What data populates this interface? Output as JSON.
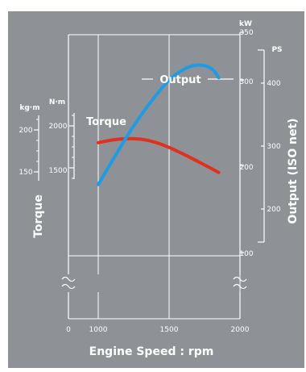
{
  "colors": {
    "background": "#8e9296",
    "torque": "#e0301e",
    "output": "#1f9be4",
    "axis": "#ffffff"
  },
  "chart_data": {
    "type": "line",
    "title": "",
    "xlabel": "Engine Speed : rpm",
    "xlim": [
      1000,
      2000
    ],
    "x_ticks": [
      "0",
      "1000",
      "1500",
      "2000"
    ],
    "grid": true,
    "left_axis": {
      "title": "Torque",
      "units": [
        "kg·m",
        "N·m"
      ],
      "nm_ticks": [
        "2000",
        "1500"
      ],
      "kgm_ticks": [
        "200",
        "150"
      ]
    },
    "right_axis": {
      "title": "Output (ISO net)",
      "units": [
        "kW",
        "PS"
      ],
      "kw_ticks": [
        "350",
        "300",
        "200",
        "100"
      ],
      "ps_ticks": [
        "400",
        "300",
        "200"
      ]
    },
    "series": [
      {
        "name": "Torque",
        "unit": "N·m",
        "color": "#e0301e",
        "points": [
          [
            1000,
            1800
          ],
          [
            1100,
            1835
          ],
          [
            1200,
            1850
          ],
          [
            1300,
            1845
          ],
          [
            1400,
            1810
          ],
          [
            1500,
            1745
          ],
          [
            1600,
            1665
          ],
          [
            1700,
            1580
          ],
          [
            1800,
            1490
          ],
          [
            1850,
            1445
          ]
        ]
      },
      {
        "name": "Output",
        "unit": "kW",
        "color": "#1f9be4",
        "points": [
          [
            1000,
            172
          ],
          [
            1100,
            200
          ],
          [
            1200,
            228
          ],
          [
            1300,
            253
          ],
          [
            1400,
            275
          ],
          [
            1500,
            295
          ],
          [
            1600,
            307
          ],
          [
            1700,
            313
          ],
          [
            1800,
            309
          ],
          [
            1850,
            297
          ]
        ]
      }
    ]
  }
}
